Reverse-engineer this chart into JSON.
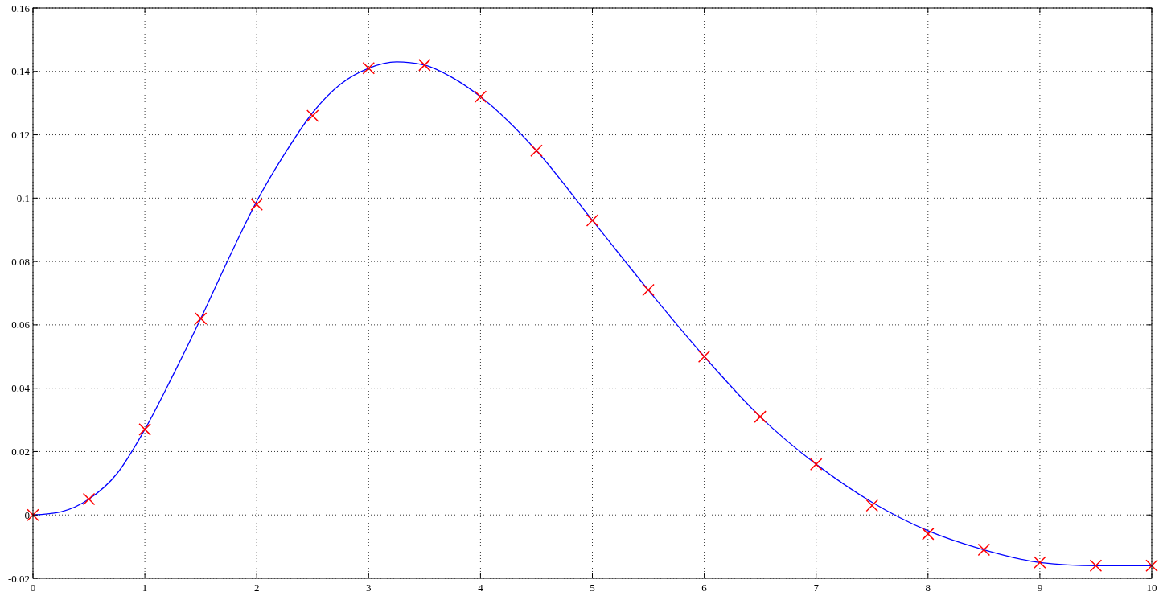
{
  "chart_data": {
    "type": "line",
    "xlim": [
      0,
      10
    ],
    "ylim": [
      -0.02,
      0.16
    ],
    "xticks": [
      0,
      1,
      2,
      3,
      4,
      5,
      6,
      7,
      8,
      9,
      10
    ],
    "yticks": [
      -0.02,
      0,
      0.02,
      0.04,
      0.06,
      0.08,
      0.1,
      0.12,
      0.14,
      0.16
    ],
    "grid": true,
    "series": [
      {
        "color": "#0000ff",
        "line_style": "solid",
        "marker": "none",
        "x": [
          0,
          0.25,
          0.5,
          0.75,
          1,
          1.25,
          1.5,
          1.75,
          2,
          2.25,
          2.5,
          2.75,
          3,
          3.25,
          3.5,
          3.75,
          4,
          4.5,
          5,
          5.5,
          6,
          6.5,
          7,
          7.5,
          8,
          8.5,
          9,
          9.5,
          10
        ],
        "values": [
          0,
          0.001,
          0.005,
          0.013,
          0.027,
          0.044,
          0.062,
          0.081,
          0.099,
          0.114,
          0.127,
          0.136,
          0.141,
          0.143,
          0.142,
          0.138,
          0.132,
          0.115,
          0.093,
          0.071,
          0.05,
          0.031,
          0.016,
          0.004,
          -0.005,
          -0.011,
          -0.015,
          -0.016,
          -0.016
        ]
      },
      {
        "type": "scatter",
        "color": "#ff0000",
        "marker": "cross",
        "x": [
          0,
          0.5,
          1,
          1.5,
          2,
          2.5,
          3,
          3.5,
          4,
          4.5,
          5,
          5.5,
          6,
          6.5,
          7,
          7.5,
          8,
          8.5,
          9,
          9.5,
          10
        ],
        "values": [
          0,
          0.005,
          0.027,
          0.062,
          0.098,
          0.126,
          0.141,
          0.142,
          0.132,
          0.115,
          0.093,
          0.071,
          0.05,
          0.031,
          0.016,
          0.003,
          -0.006,
          -0.011,
          -0.015,
          -0.016,
          -0.016
        ]
      }
    ]
  }
}
